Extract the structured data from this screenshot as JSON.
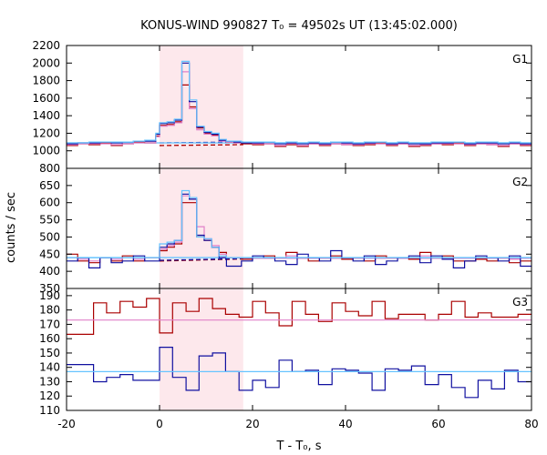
{
  "chart_data": {
    "type": "line",
    "step": true,
    "title": "KONUS-WIND 990827 T₀ = 49502s UT (13:45:02.000)",
    "xlabel": "T - T₀, s",
    "ylabel": "counts / sec",
    "xlim": [
      -20,
      80
    ],
    "xticks": [
      -20,
      0,
      20,
      40,
      60,
      80
    ],
    "highlight_interval": [
      0,
      18
    ],
    "grid": false,
    "colors": {
      "dark_red": "#aa0000",
      "pink": "#e080c8",
      "dark_blue": "#1010a0",
      "light_blue": "#66c4ff",
      "shade": "#fde8ec"
    },
    "panels": [
      {
        "label": "G1",
        "ylim": [
          800,
          2200
        ],
        "yticks": [
          800,
          1000,
          1200,
          1400,
          1600,
          1800,
          2000,
          2200
        ],
        "x_edges": [
          -20,
          -17.6,
          -15.2,
          -12.8,
          -10.4,
          -8,
          -5.6,
          -3.2,
          -0.8,
          0,
          1.6,
          3.2,
          4.8,
          6.4,
          8,
          9.6,
          11.2,
          12.8,
          14.4,
          16,
          17.6,
          20,
          22.4,
          24.8,
          27.2,
          29.6,
          32,
          34.4,
          36.8,
          39.2,
          41.6,
          44,
          46.4,
          48.8,
          51.2,
          53.6,
          56,
          58.4,
          60.8,
          63.2,
          65.6,
          68,
          70.4,
          72.8,
          75.2,
          77.6,
          80
        ],
        "series": [
          {
            "color": "dark_red",
            "values": [
              1060,
              1080,
              1070,
              1090,
              1060,
              1080,
              1100,
              1090,
              1170,
              1290,
              1300,
              1330,
              1750,
              1500,
              1260,
              1200,
              1180,
              1120,
              1100,
              1090,
              1080,
              1070,
              1080,
              1050,
              1070,
              1050,
              1080,
              1060,
              1080,
              1070,
              1060,
              1070,
              1090,
              1060,
              1080,
              1050,
              1060,
              1080,
              1070,
              1090,
              1060,
              1080,
              1070,
              1050,
              1080,
              1060
            ]
          },
          {
            "color": "pink",
            "values": [
              1070,
              1080,
              1080,
              1080,
              1070,
              1080,
              1090,
              1090,
              1160,
              1280,
              1290,
              1320,
              1900,
              1480,
              1240,
              1190,
              1170,
              1110,
              1100,
              1090,
              1090,
              1080,
              1080,
              1060,
              1080,
              1060,
              1080,
              1070,
              1080,
              1070,
              1070,
              1080,
              1080,
              1070,
              1080,
              1060,
              1070,
              1080,
              1080,
              1080,
              1070,
              1080,
              1070,
              1060,
              1080,
              1070
            ]
          },
          {
            "color": "dark_blue",
            "values": [
              1080,
              1090,
              1090,
              1100,
              1090,
              1100,
              1110,
              1110,
              1190,
              1310,
              1320,
              1350,
              2000,
              1560,
              1270,
              1210,
              1190,
              1120,
              1110,
              1100,
              1090,
              1090,
              1100,
              1080,
              1090,
              1080,
              1090,
              1080,
              1100,
              1090,
              1080,
              1090,
              1100,
              1080,
              1090,
              1080,
              1080,
              1090,
              1090,
              1100,
              1080,
              1090,
              1090,
              1080,
              1090,
              1080
            ]
          },
          {
            "color": "light_blue",
            "values": [
              1090,
              1090,
              1100,
              1100,
              1100,
              1100,
              1110,
              1120,
              1200,
              1320,
              1330,
              1360,
              2020,
              1580,
              1280,
              1220,
              1200,
              1130,
              1110,
              1110,
              1100,
              1100,
              1100,
              1090,
              1100,
              1090,
              1100,
              1090,
              1100,
              1100,
              1090,
              1100,
              1100,
              1090,
              1100,
              1090,
              1090,
              1100,
              1100,
              1100,
              1090,
              1100,
              1100,
              1090,
              1100,
              1090
            ]
          }
        ],
        "backgrounds": [
          {
            "color": "dark_red",
            "dashed": true,
            "x_range": [
              0,
              18
            ],
            "y": [
              1060,
              1070
            ]
          },
          {
            "color": "pink",
            "dashed": false,
            "x_range": [
              18,
              80
            ],
            "y": [
              1080,
              1080
            ]
          },
          {
            "color": "dark_blue",
            "dashed": true,
            "x_range": [
              0,
              18
            ],
            "y": [
              1090,
              1100
            ]
          },
          {
            "color": "light_blue",
            "dashed": false,
            "x_range": [
              -20,
              80
            ],
            "y": [
              1090,
              1090
            ]
          }
        ]
      },
      {
        "label": "G2",
        "ylim": [
          350,
          700
        ],
        "yticks": [
          350,
          400,
          450,
          500,
          550,
          600,
          650
        ],
        "x_edges": [
          -20,
          -17.6,
          -15.2,
          -12.8,
          -10.4,
          -8,
          -5.6,
          -3.2,
          -0.8,
          0,
          1.6,
          3.2,
          4.8,
          6.4,
          8,
          9.6,
          11.2,
          12.8,
          14.4,
          16,
          17.6,
          20,
          22.4,
          24.8,
          27.2,
          29.6,
          32,
          34.4,
          36.8,
          39.2,
          41.6,
          44,
          46.4,
          48.8,
          51.2,
          53.6,
          56,
          58.4,
          60.8,
          63.2,
          65.6,
          68,
          70.4,
          72.8,
          75.2,
          77.6,
          80
        ],
        "series": [
          {
            "color": "dark_red",
            "values": [
              450,
              430,
              425,
              440,
              430,
              445,
              430,
              440,
              440,
              460,
              470,
              480,
              600,
              600,
              500,
              490,
              470,
              455,
              440,
              440,
              435,
              440,
              445,
              440,
              455,
              440,
              430,
              440,
              445,
              435,
              440,
              430,
              445,
              440,
              440,
              435,
              455,
              440,
              445,
              430,
              430,
              435,
              430,
              440,
              425,
              430
            ]
          },
          {
            "color": "pink",
            "values": [
              440,
              435,
              430,
              440,
              435,
              440,
              435,
              440,
              440,
              465,
              475,
              485,
              620,
              610,
              530,
              495,
              475,
              450,
              440,
              440,
              440,
              440,
              440,
              440,
              445,
              440,
              440,
              440,
              440,
              440,
              440,
              440,
              440,
              440,
              440,
              440,
              445,
              440,
              440,
              440,
              440,
              440,
              440,
              440,
              435,
              440
            ]
          },
          {
            "color": "dark_blue",
            "values": [
              430,
              440,
              410,
              440,
              425,
              430,
              445,
              430,
              430,
              470,
              480,
              490,
              625,
              610,
              505,
              490,
              470,
              440,
              415,
              415,
              430,
              445,
              440,
              430,
              420,
              450,
              440,
              430,
              460,
              440,
              430,
              445,
              420,
              430,
              440,
              445,
              425,
              445,
              435,
              410,
              430,
              445,
              440,
              430,
              445,
              415
            ]
          },
          {
            "color": "light_blue",
            "values": [
              440,
              440,
              440,
              440,
              440,
              440,
              440,
              440,
              440,
              480,
              485,
              490,
              635,
              615,
              500,
              495,
              470,
              445,
              440,
              440,
              440,
              440,
              440,
              440,
              440,
              440,
              440,
              440,
              440,
              440,
              440,
              440,
              440,
              440,
              440,
              440,
              440,
              440,
              440,
              440,
              440,
              440,
              440,
              440,
              440,
              440
            ]
          }
        ],
        "backgrounds": [
          {
            "color": "dark_red",
            "dashed": true,
            "x_range": [
              0,
              18
            ],
            "y": [
              430,
              436
            ]
          },
          {
            "color": "pink",
            "dashed": false,
            "x_range": [
              18,
              80
            ],
            "y": [
              438,
              438
            ]
          },
          {
            "color": "dark_blue",
            "dashed": true,
            "x_range": [
              0,
              18
            ],
            "y": [
              432,
              437
            ]
          },
          {
            "color": "light_blue",
            "dashed": false,
            "x_range": [
              -20,
              80
            ],
            "y": [
              440,
              440
            ]
          }
        ]
      },
      {
        "label": "G3",
        "ylim": [
          110,
          195
        ],
        "yticks": [
          110,
          120,
          130,
          140,
          150,
          160,
          170,
          180,
          190
        ],
        "x_edges": [
          -20,
          -14.2,
          -11.4,
          -8.5,
          -5.7,
          -2.8,
          0,
          2.8,
          5.7,
          8.5,
          11.4,
          14.2,
          17.1,
          20,
          22.8,
          25.7,
          28.5,
          31.4,
          34.2,
          37.1,
          40,
          42.8,
          45.7,
          48.5,
          51.4,
          54.2,
          57.1,
          60,
          62.8,
          65.7,
          68.5,
          71.4,
          74.2,
          77.1,
          80
        ],
        "series": [
          {
            "color": "dark_red",
            "values": [
              163,
              185,
              178,
              186,
              182,
              188,
              164,
              185,
              179,
              188,
              181,
              177,
              175,
              186,
              178,
              169,
              186,
              177,
              172,
              185,
              179,
              176,
              186,
              174,
              177,
              177,
              173,
              177,
              186,
              175,
              178,
              175,
              175,
              177
            ]
          },
          {
            "color": "pink",
            "values": [
              173,
              173,
              173,
              173,
              173,
              173,
              173,
              173,
              173,
              173,
              173,
              173,
              173,
              173,
              173,
              173,
              173,
              173,
              173,
              173,
              173,
              173,
              173,
              173,
              173,
              173,
              173,
              173,
              173,
              173,
              173,
              173,
              173,
              173
            ]
          },
          {
            "color": "dark_blue",
            "values": [
              142,
              130,
              133,
              135,
              131,
              131,
              154,
              133,
              124,
              148,
              150,
              137,
              124,
              131,
              126,
              145,
              137,
              138,
              128,
              139,
              138,
              136,
              124,
              139,
              138,
              141,
              128,
              135,
              126,
              119,
              131,
              125,
              138,
              130
            ]
          },
          {
            "color": "light_blue",
            "values": [
              137,
              137,
              137,
              137,
              137,
              137,
              137,
              137,
              137,
              137,
              137,
              137,
              137,
              137,
              137,
              137,
              137,
              137,
              137,
              137,
              137,
              137,
              137,
              137,
              137,
              137,
              137,
              137,
              137,
              137,
              137,
              137,
              137,
              137
            ]
          }
        ],
        "backgrounds": []
      }
    ]
  }
}
